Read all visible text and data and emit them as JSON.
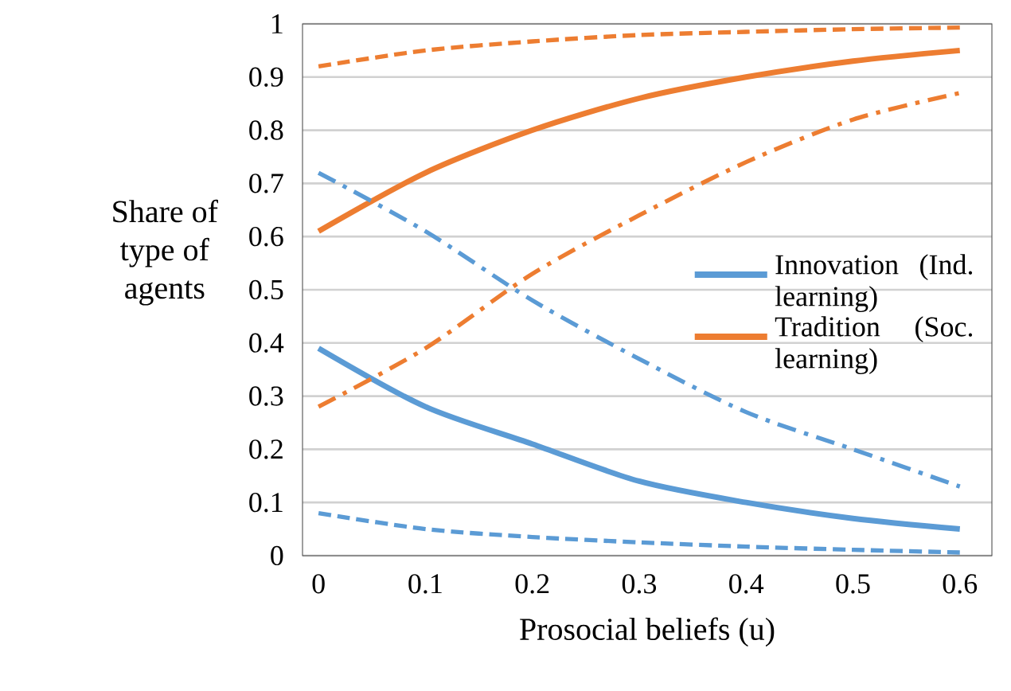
{
  "chart_data": {
    "type": "line",
    "xlabel": "Prosocial beliefs (u)",
    "ylabel": "Share of type of agents",
    "x": [
      0,
      0.1,
      0.2,
      0.3,
      0.4,
      0.5,
      0.6
    ],
    "series": [
      {
        "name": "Innovation (Ind. learning)",
        "color": "#5b9bd5",
        "line_style": "solid",
        "values": [
          0.39,
          0.28,
          0.21,
          0.14,
          0.1,
          0.07,
          0.05
        ]
      },
      {
        "name": "Tradition (Soc. learning)",
        "color": "#ed7d31",
        "line_style": "solid",
        "values": [
          0.61,
          0.72,
          0.8,
          0.86,
          0.9,
          0.93,
          0.95
        ]
      },
      {
        "color": "#5b9bd5",
        "line_style": "dashed",
        "values": [
          0.08,
          0.05,
          0.035,
          0.025,
          0.017,
          0.011,
          0.006
        ]
      },
      {
        "color": "#ed7d31",
        "line_style": "dashed",
        "values": [
          0.92,
          0.95,
          0.967,
          0.979,
          0.985,
          0.99,
          0.993
        ]
      },
      {
        "color": "#5b9bd5",
        "line_style": "dashdot",
        "values": [
          0.72,
          0.61,
          0.48,
          0.37,
          0.27,
          0.2,
          0.13
        ]
      },
      {
        "color": "#ed7d31",
        "line_style": "dashdot",
        "values": [
          0.28,
          0.39,
          0.53,
          0.64,
          0.74,
          0.82,
          0.87
        ]
      }
    ],
    "xlim": [
      -0.015,
      0.63
    ],
    "ylim": [
      0,
      1
    ],
    "xticks": [
      0,
      0.1,
      0.2,
      0.3,
      0.4,
      0.5,
      0.6
    ],
    "yticks": [
      0,
      0.1,
      0.2,
      0.3,
      0.4,
      0.5,
      0.6,
      0.7,
      0.8,
      0.9,
      1
    ],
    "grid": "y",
    "legend": "right",
    "marker": "none"
  }
}
